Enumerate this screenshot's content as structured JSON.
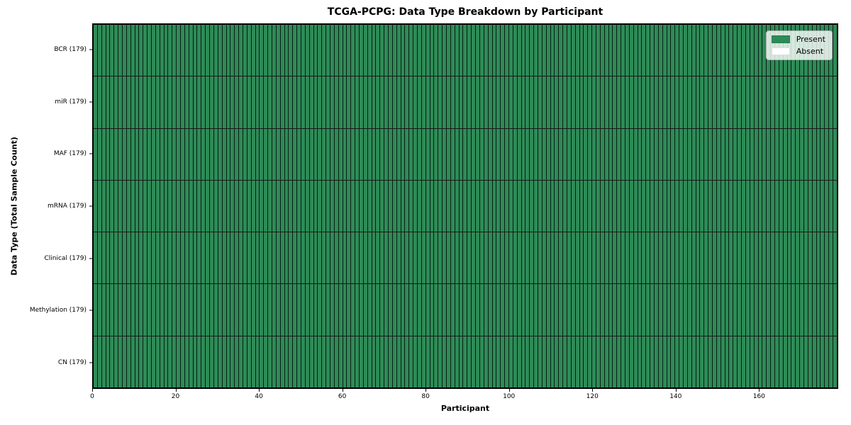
{
  "chart_data": {
    "type": "heatmap",
    "title": "TCGA-PCPG: Data Type Breakdown by Participant",
    "xlabel": "Participant",
    "ylabel": "Data Type (Total Sample Count)",
    "xlim": [
      0,
      179
    ],
    "x_ticks": [
      0,
      20,
      40,
      60,
      80,
      100,
      120,
      140,
      160
    ],
    "n_participants": 179,
    "rows": [
      {
        "label": "BCR (179)",
        "total_samples": 179,
        "present": 179,
        "absent": 0
      },
      {
        "label": "miR (179)",
        "total_samples": 179,
        "present": 179,
        "absent": 0
      },
      {
        "label": "MAF (179)",
        "total_samples": 179,
        "present": 179,
        "absent": 0
      },
      {
        "label": "mRNA (179)",
        "total_samples": 179,
        "present": 179,
        "absent": 0
      },
      {
        "label": "Clinical (179)",
        "total_samples": 179,
        "present": 179,
        "absent": 0
      },
      {
        "label": "Methylation (179)",
        "total_samples": 179,
        "present": 179,
        "absent": 0
      },
      {
        "label": "CN (179)",
        "total_samples": 179,
        "present": 179,
        "absent": 0
      }
    ],
    "legend": {
      "position": "upper right",
      "entries": [
        {
          "label": "Present",
          "color": "#2e8b57"
        },
        {
          "label": "Absent",
          "color": "#ffffff"
        }
      ]
    },
    "colors": {
      "present": "#2e8b57",
      "absent": "#ffffff",
      "cell_edge": "#000000",
      "plot_border": "#000000"
    },
    "grid": false
  }
}
